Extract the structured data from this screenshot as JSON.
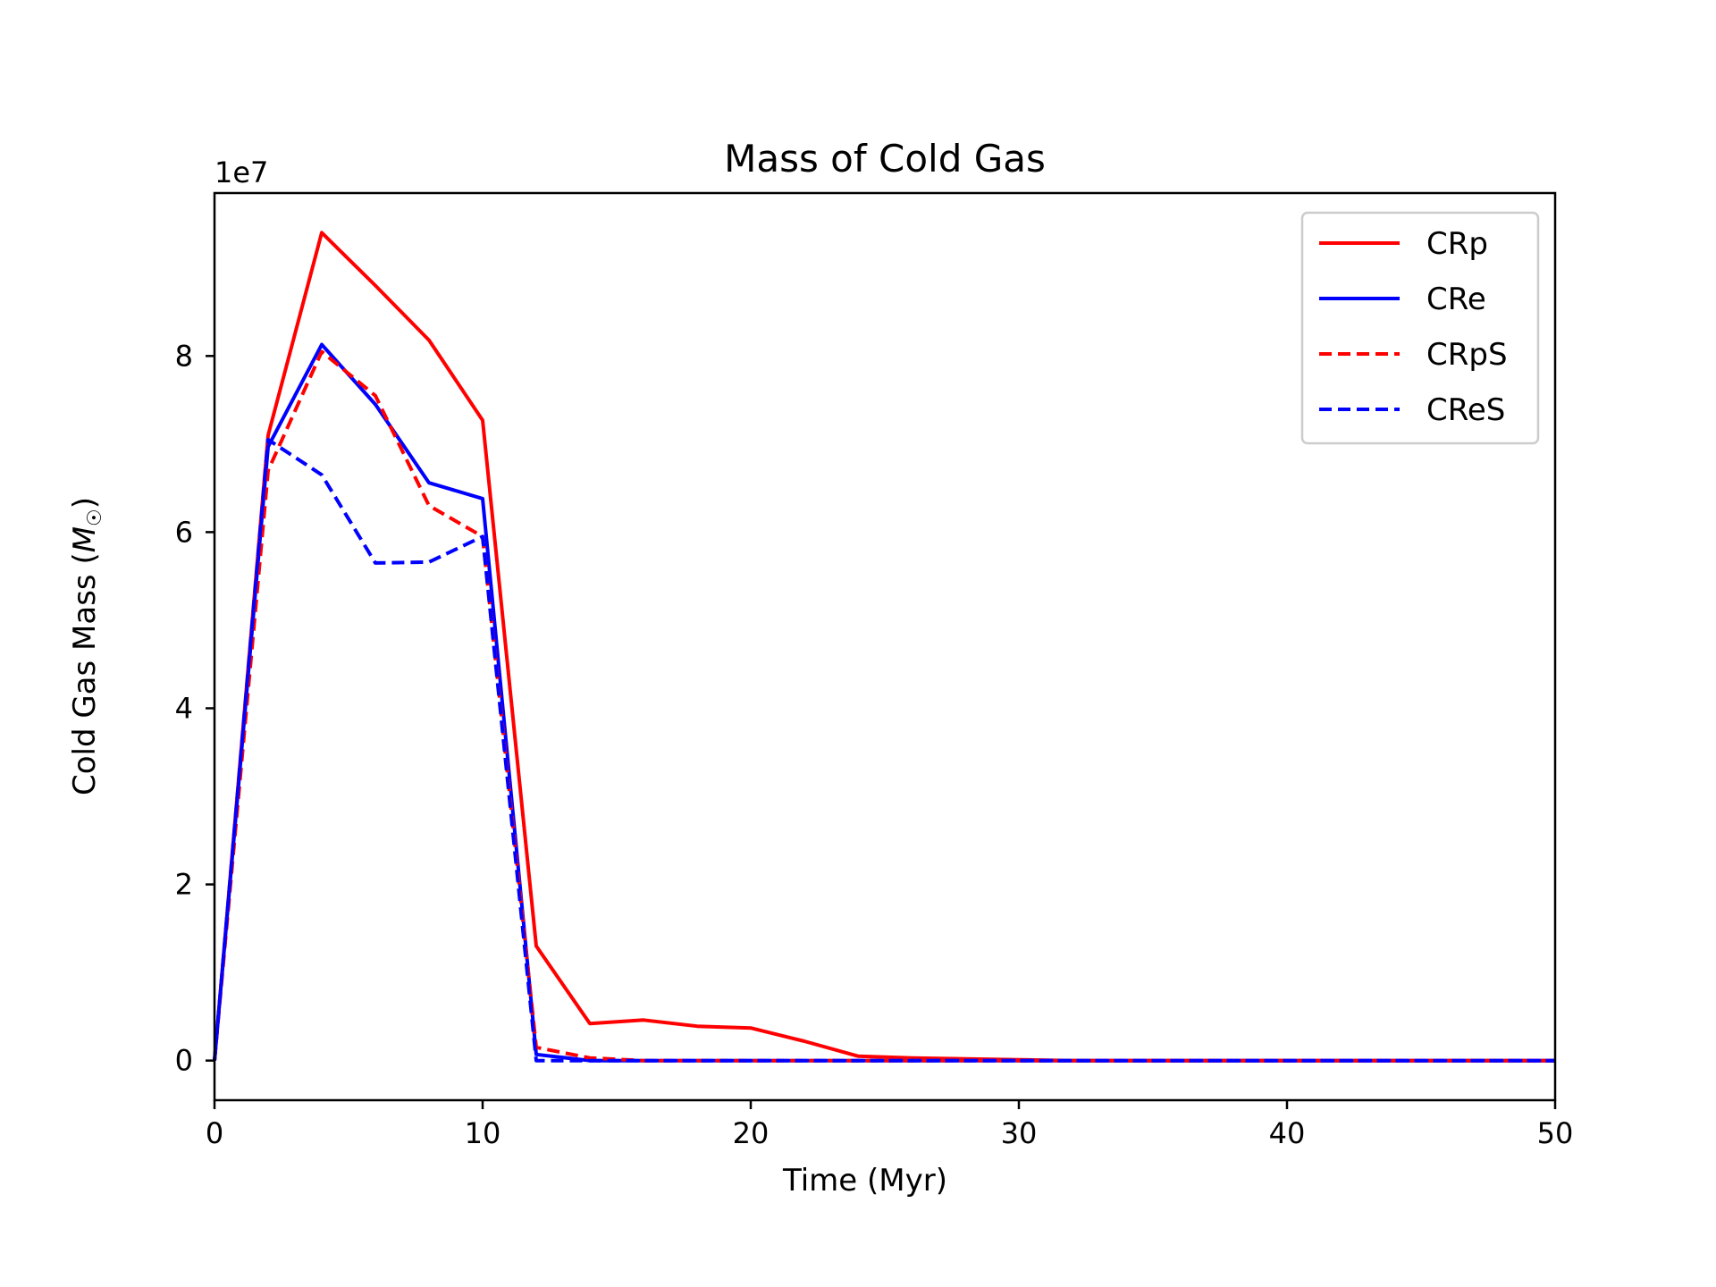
{
  "chart_data": {
    "type": "line",
    "title": "Mass of Cold Gas",
    "xlabel": "Time (Myr)",
    "ylabel": "Cold Gas Mass (M☉)",
    "ylabel_text": "Cold Gas Mass (",
    "ylabel_symbol": "M",
    "ylabel_sub": "☉",
    "ylabel_close": ")",
    "y_offset_label": "1e7",
    "xlim": [
      0,
      50
    ],
    "ylim": [
      -0.45,
      9.85
    ],
    "y_scale": 10000000,
    "x_ticks": [
      0,
      10,
      20,
      30,
      40,
      50
    ],
    "x_tick_labels": [
      "0",
      "10",
      "20",
      "30",
      "40",
      "50"
    ],
    "y_ticks": [
      0,
      2,
      4,
      6,
      8
    ],
    "y_tick_labels": [
      "0",
      "2",
      "4",
      "6",
      "8"
    ],
    "grid": false,
    "legend_position": "top-right",
    "series": [
      {
        "name": "CRp",
        "color": "#ff0000",
        "style": "solid",
        "x": [
          0,
          2,
          4,
          6,
          8,
          10,
          12,
          14,
          16,
          18,
          20,
          22,
          24,
          26,
          28,
          30,
          32,
          40,
          50
        ],
        "y": [
          0,
          7.1,
          9.4,
          8.8,
          8.18,
          7.27,
          1.3,
          0.42,
          0.46,
          0.39,
          0.37,
          0.22,
          0.05,
          0.03,
          0.02,
          0.01,
          0.0,
          0.0,
          0.0
        ]
      },
      {
        "name": "CRe",
        "color": "#0000ff",
        "style": "solid",
        "x": [
          0,
          2,
          4,
          6,
          8,
          10,
          12,
          14,
          16,
          20,
          30,
          40,
          50
        ],
        "y": [
          0,
          6.97,
          8.13,
          7.45,
          6.56,
          6.38,
          0.07,
          0.0,
          0.0,
          0.0,
          0.0,
          0.0,
          0.0
        ]
      },
      {
        "name": "CRpS",
        "color": "#ff0000",
        "style": "dashed",
        "x": [
          0,
          2,
          4,
          6,
          8,
          10,
          12,
          14,
          16,
          20,
          30,
          40,
          50
        ],
        "y": [
          0,
          6.7,
          8.05,
          7.55,
          6.3,
          5.95,
          0.15,
          0.03,
          0.0,
          0.0,
          0.0,
          0.0,
          0.0
        ]
      },
      {
        "name": "CReS",
        "color": "#0000ff",
        "style": "dashed",
        "x": [
          0,
          2,
          4,
          6,
          8,
          10,
          12,
          14,
          16,
          20,
          30,
          40,
          50
        ],
        "y": [
          0,
          7.05,
          6.65,
          5.65,
          5.66,
          5.95,
          0.0,
          0.0,
          0.0,
          0.0,
          0.0,
          0.0,
          0.0
        ]
      }
    ]
  }
}
